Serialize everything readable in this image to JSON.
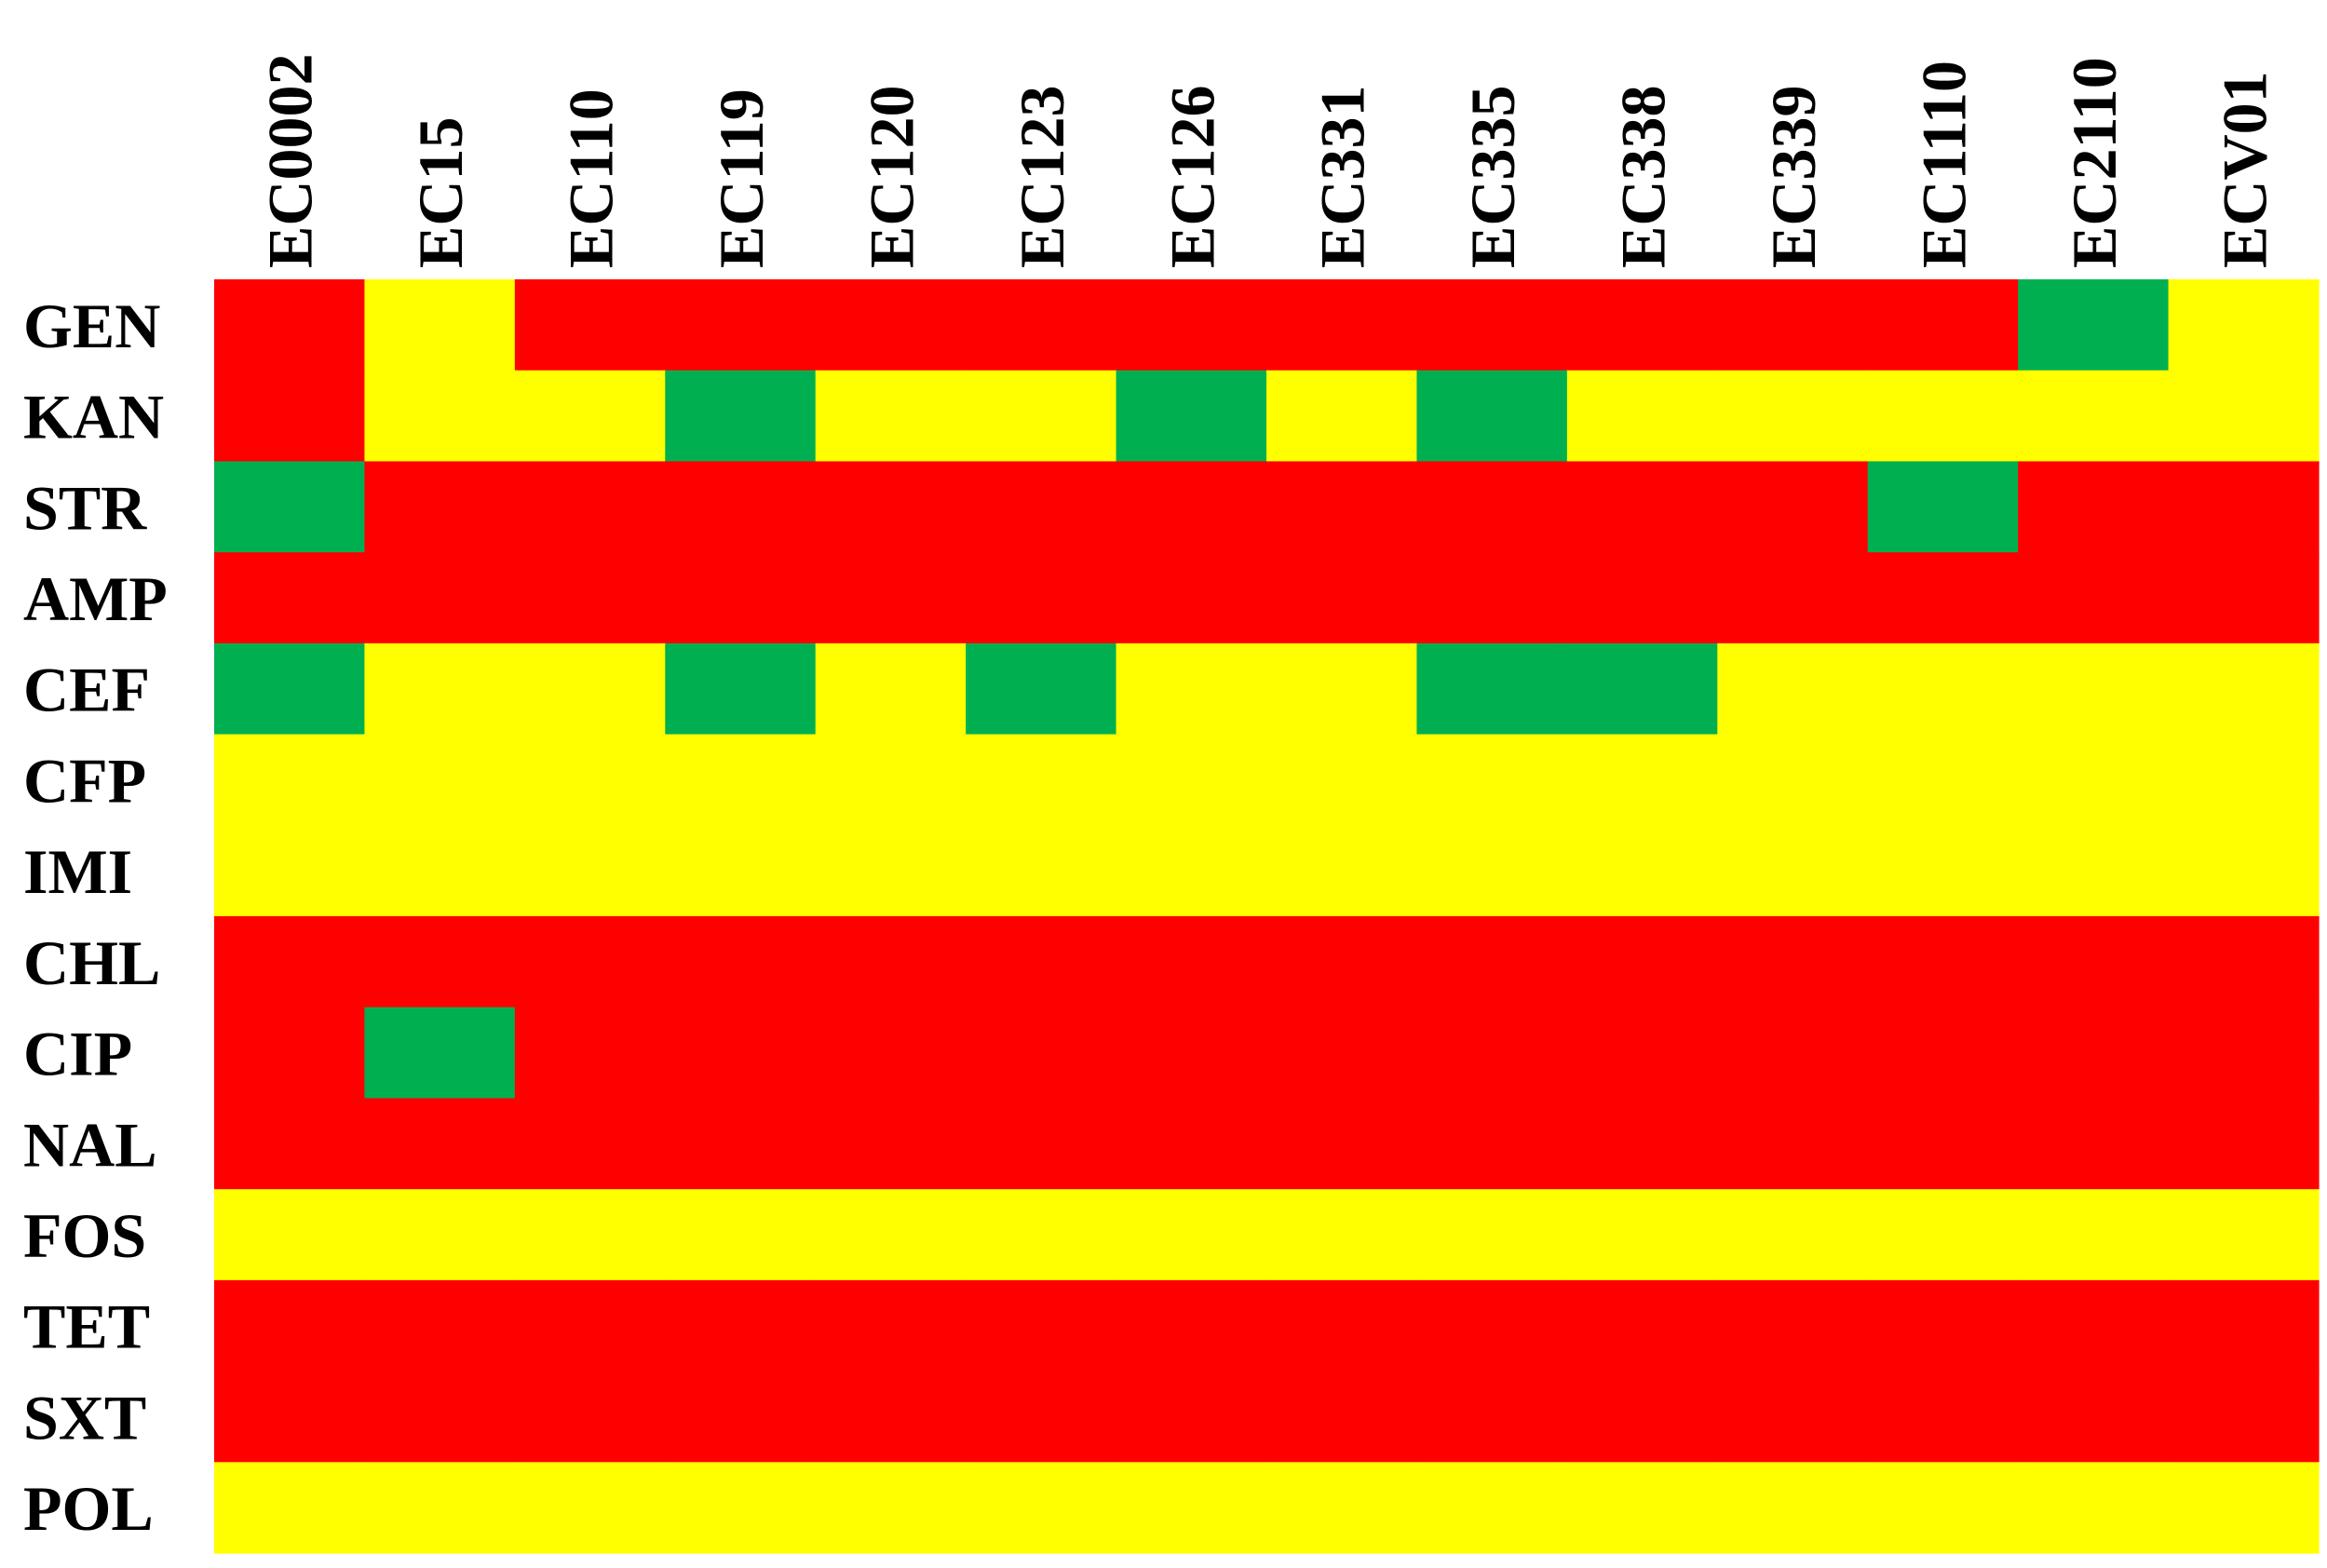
{
  "chart_data": {
    "type": "heatmap",
    "title": "",
    "xlabel": "",
    "ylabel": "",
    "columns": [
      "EC0002",
      "EC15",
      "EC110",
      "EC119",
      "EC120",
      "EC123",
      "EC126",
      "EC331",
      "EC335",
      "EC338",
      "EC339",
      "EC1110",
      "EC2110",
      "ECV01"
    ],
    "rows": [
      "GEN",
      "KAN",
      "STR",
      "AMP",
      "CEF",
      "CFP",
      "IMI",
      "CHL",
      "CIP",
      "NAL",
      "FOS",
      "TET",
      "SXT",
      "POL"
    ],
    "color_scale": {
      "R": "#ff0000",
      "I": "#ffff00",
      "S": "#00b050"
    },
    "values": [
      [
        "R",
        "I",
        "R",
        "R",
        "R",
        "R",
        "R",
        "R",
        "R",
        "R",
        "R",
        "R",
        "S",
        "I"
      ],
      [
        "R",
        "I",
        "I",
        "S",
        "I",
        "I",
        "S",
        "I",
        "S",
        "I",
        "I",
        "I",
        "I",
        "I"
      ],
      [
        "S",
        "R",
        "R",
        "R",
        "R",
        "R",
        "R",
        "R",
        "R",
        "R",
        "R",
        "S",
        "R",
        "R"
      ],
      [
        "R",
        "R",
        "R",
        "R",
        "R",
        "R",
        "R",
        "R",
        "R",
        "R",
        "R",
        "R",
        "R",
        "R"
      ],
      [
        "S",
        "I",
        "I",
        "S",
        "I",
        "S",
        "I",
        "I",
        "S",
        "S",
        "I",
        "I",
        "I",
        "I"
      ],
      [
        "I",
        "I",
        "I",
        "I",
        "I",
        "I",
        "I",
        "I",
        "I",
        "I",
        "I",
        "I",
        "I",
        "I"
      ],
      [
        "I",
        "I",
        "I",
        "I",
        "I",
        "I",
        "I",
        "I",
        "I",
        "I",
        "I",
        "I",
        "I",
        "I"
      ],
      [
        "R",
        "R",
        "R",
        "R",
        "R",
        "R",
        "R",
        "R",
        "R",
        "R",
        "R",
        "R",
        "R",
        "R"
      ],
      [
        "R",
        "S",
        "R",
        "R",
        "R",
        "R",
        "R",
        "R",
        "R",
        "R",
        "R",
        "R",
        "R",
        "R"
      ],
      [
        "R",
        "R",
        "R",
        "R",
        "R",
        "R",
        "R",
        "R",
        "R",
        "R",
        "R",
        "R",
        "R",
        "R"
      ],
      [
        "I",
        "I",
        "I",
        "I",
        "I",
        "I",
        "I",
        "I",
        "I",
        "I",
        "I",
        "I",
        "I",
        "I"
      ],
      [
        "R",
        "R",
        "R",
        "R",
        "R",
        "R",
        "R",
        "R",
        "R",
        "R",
        "R",
        "R",
        "R",
        "R"
      ],
      [
        "R",
        "R",
        "R",
        "R",
        "R",
        "R",
        "R",
        "R",
        "R",
        "R",
        "R",
        "R",
        "R",
        "R"
      ],
      [
        "I",
        "I",
        "I",
        "I",
        "I",
        "I",
        "I",
        "I",
        "I",
        "I",
        "I",
        "I",
        "I",
        "I"
      ]
    ],
    "legend": "none",
    "grid": false
  }
}
